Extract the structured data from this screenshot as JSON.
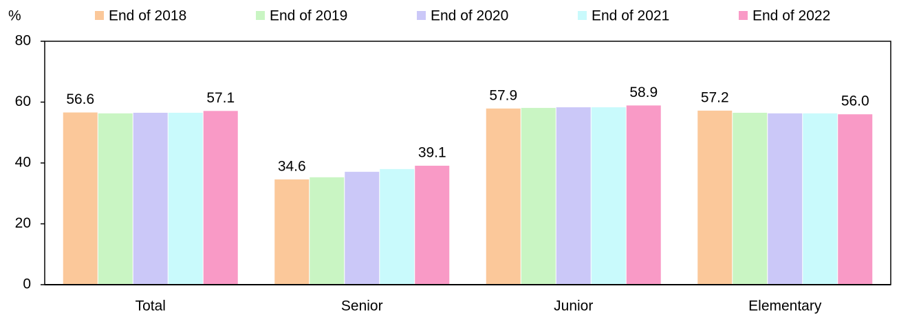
{
  "chart_data": {
    "type": "bar",
    "y_label": "%",
    "categories": [
      "Total",
      "Senior",
      "Junior",
      "Elementary"
    ],
    "series": [
      {
        "name": "End of 2018",
        "color": "#fbc89a",
        "values": [
          56.6,
          34.6,
          57.9,
          57.2
        ],
        "value_labels": [
          "56.6",
          "34.6",
          "57.9",
          "57.2"
        ]
      },
      {
        "name": "End of 2019",
        "color": "#c9f5c3",
        "values": [
          56.3,
          35.3,
          58.1,
          56.5
        ]
      },
      {
        "name": "End of 2020",
        "color": "#cbc8f8",
        "values": [
          56.5,
          37.1,
          58.3,
          56.3
        ]
      },
      {
        "name": "End of 2021",
        "color": "#c9fafc",
        "values": [
          56.5,
          38.0,
          58.3,
          56.3
        ]
      },
      {
        "name": "End of 2022",
        "color": "#f99ac6",
        "values": [
          57.1,
          39.1,
          58.9,
          56.0
        ],
        "value_labels": [
          "57.1",
          "39.1",
          "58.9",
          "56.0"
        ]
      }
    ],
    "ylim": [
      0,
      80
    ],
    "yticks": [
      0,
      20,
      40,
      60,
      80
    ],
    "grid": false,
    "legend": "top"
  }
}
